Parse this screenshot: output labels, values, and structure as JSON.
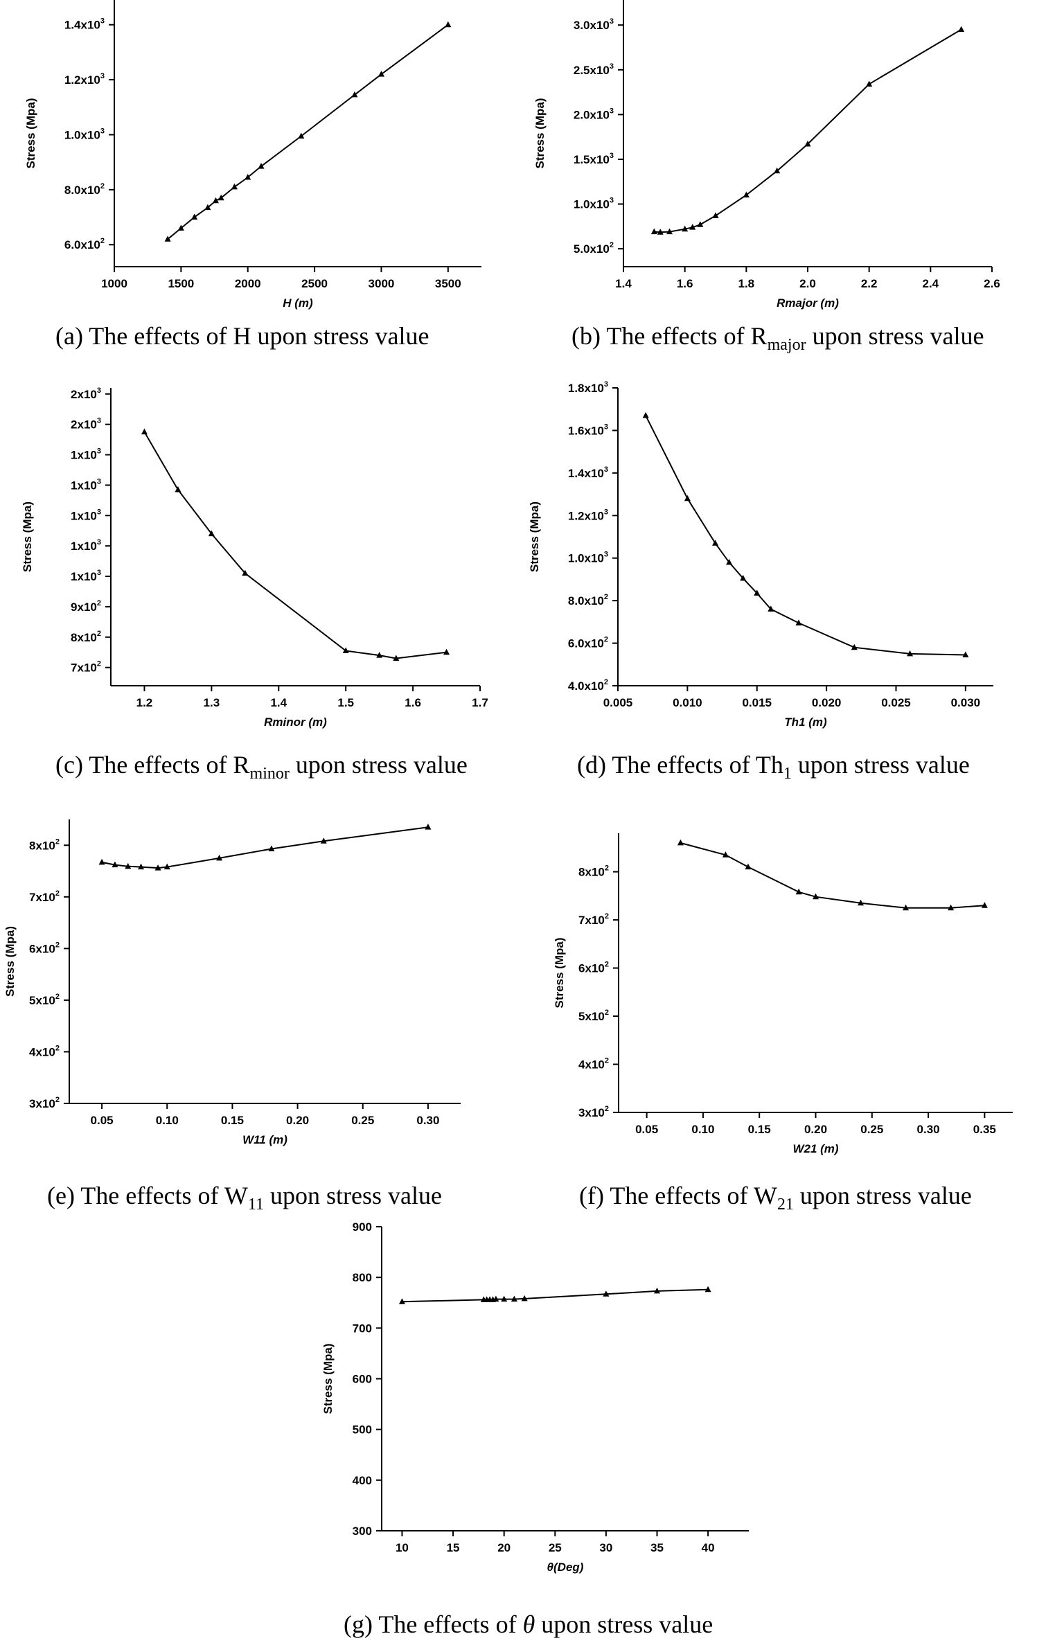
{
  "chart_data": [
    {
      "id": "a",
      "type": "line",
      "caption": {
        "prefix": "(a) The effects of H upon stress value",
        "sub": "",
        "suffix": ""
      },
      "xlabel": "H (m)",
      "ylabel": "Stress (Mpa)",
      "xlim": [
        1000,
        3750
      ],
      "ylim": [
        520,
        1490
      ],
      "xticks": [
        {
          "v": 1000,
          "label": "1000"
        },
        {
          "v": 1500,
          "label": "1500"
        },
        {
          "v": 2000,
          "label": "2000"
        },
        {
          "v": 2500,
          "label": "2500"
        },
        {
          "v": 3000,
          "label": "3000"
        },
        {
          "v": 3500,
          "label": "3500"
        }
      ],
      "yticks": [
        {
          "v": 600,
          "m": "6.0x10",
          "e": "2"
        },
        {
          "v": 800,
          "m": "8.0x10",
          "e": "2"
        },
        {
          "v": 1000,
          "m": "1.0x10",
          "e": "3"
        },
        {
          "v": 1200,
          "m": "1.2x10",
          "e": "3"
        },
        {
          "v": 1400,
          "m": "1.4x10",
          "e": "3"
        }
      ],
      "x": [
        1400,
        1500,
        1600,
        1700,
        1760,
        1800,
        1900,
        2000,
        2100,
        2400,
        2800,
        3000,
        3500
      ],
      "y": [
        620,
        660,
        700,
        735,
        760,
        770,
        810,
        845,
        885,
        995,
        1145,
        1220,
        1400
      ]
    },
    {
      "id": "b",
      "type": "line",
      "caption": {
        "prefix": "(b) The effects of R",
        "sub": "major",
        "suffix": " upon stress value"
      },
      "xlabel": "Rmajor (m)",
      "ylabel": "Stress (Mpa)",
      "xlim": [
        1.4,
        2.6
      ],
      "ylim": [
        300,
        3280
      ],
      "xticks": [
        {
          "v": 1.4,
          "label": "1.4"
        },
        {
          "v": 1.6,
          "label": "1.6"
        },
        {
          "v": 1.8,
          "label": "1.8"
        },
        {
          "v": 2.0,
          "label": "2.0"
        },
        {
          "v": 2.2,
          "label": "2.2"
        },
        {
          "v": 2.4,
          "label": "2.4"
        },
        {
          "v": 2.6,
          "label": "2.6"
        }
      ],
      "yticks": [
        {
          "v": 500,
          "m": "5.0x10",
          "e": "2"
        },
        {
          "v": 1000,
          "m": "1.0x10",
          "e": "3"
        },
        {
          "v": 1500,
          "m": "1.5x10",
          "e": "3"
        },
        {
          "v": 2000,
          "m": "2.0x10",
          "e": "3"
        },
        {
          "v": 2500,
          "m": "2.5x10",
          "e": "3"
        },
        {
          "v": 3000,
          "m": "3.0x10",
          "e": "3"
        }
      ],
      "x": [
        1.5,
        1.52,
        1.55,
        1.6,
        1.625,
        1.65,
        1.7,
        1.8,
        1.9,
        2.0,
        2.2,
        2.5
      ],
      "y": [
        690,
        685,
        690,
        720,
        740,
        770,
        870,
        1100,
        1370,
        1670,
        2340,
        2950
      ]
    },
    {
      "id": "c",
      "type": "line",
      "caption": {
        "prefix": "(c) The effects of R",
        "sub": "minor",
        "suffix": " upon stress value"
      },
      "xlabel": "Rminor (m)",
      "ylabel": "Stress (Mpa)",
      "xlim": [
        1.15,
        1.7
      ],
      "ylim": [
        640,
        1620
      ],
      "xticks": [
        {
          "v": 1.2,
          "label": "1.2"
        },
        {
          "v": 1.3,
          "label": "1.3"
        },
        {
          "v": 1.4,
          "label": "1.4"
        },
        {
          "v": 1.5,
          "label": "1.5"
        },
        {
          "v": 1.6,
          "label": "1.6"
        },
        {
          "v": 1.7,
          "label": "1.7"
        }
      ],
      "yticks": [
        {
          "v": 700,
          "m": "7x10",
          "e": "2"
        },
        {
          "v": 800,
          "m": "8x10",
          "e": "2"
        },
        {
          "v": 900,
          "m": "9x10",
          "e": "2"
        },
        {
          "v": 1000,
          "m": "1x10",
          "e": "3"
        },
        {
          "v": 1100,
          "m": "1x10",
          "e": "3"
        },
        {
          "v": 1200,
          "m": "1x10",
          "e": "3"
        },
        {
          "v": 1300,
          "m": "1x10",
          "e": "3"
        },
        {
          "v": 1400,
          "m": "1x10",
          "e": "3"
        },
        {
          "v": 1500,
          "m": "2x10",
          "e": "3"
        },
        {
          "v": 1600,
          "m": "2x10",
          "e": "3"
        }
      ],
      "x": [
        1.2,
        1.25,
        1.3,
        1.35,
        1.5,
        1.55,
        1.575,
        1.65
      ],
      "y": [
        1475,
        1285,
        1140,
        1010,
        755,
        740,
        730,
        750
      ]
    },
    {
      "id": "d",
      "type": "line",
      "caption": {
        "prefix": "(d) The effects of Th",
        "sub": "1",
        "suffix": " upon stress value"
      },
      "xlabel": "Th1 (m)",
      "ylabel": "Stress (Mpa)",
      "xlim": [
        0.005,
        0.032
      ],
      "ylim": [
        400,
        1800
      ],
      "xticks": [
        {
          "v": 0.005,
          "label": "0.005"
        },
        {
          "v": 0.01,
          "label": "0.010"
        },
        {
          "v": 0.015,
          "label": "0.015"
        },
        {
          "v": 0.02,
          "label": "0.020"
        },
        {
          "v": 0.025,
          "label": "0.025"
        },
        {
          "v": 0.03,
          "label": "0.030"
        }
      ],
      "yticks": [
        {
          "v": 400,
          "m": "4.0x10",
          "e": "2"
        },
        {
          "v": 600,
          "m": "6.0x10",
          "e": "2"
        },
        {
          "v": 800,
          "m": "8.0x10",
          "e": "2"
        },
        {
          "v": 1000,
          "m": "1.0x10",
          "e": "3"
        },
        {
          "v": 1200,
          "m": "1.2x10",
          "e": "3"
        },
        {
          "v": 1400,
          "m": "1.4x10",
          "e": "3"
        },
        {
          "v": 1600,
          "m": "1.6x10",
          "e": "3"
        },
        {
          "v": 1800,
          "m": "1.8x10",
          "e": "3"
        }
      ],
      "x": [
        0.007,
        0.01,
        0.012,
        0.013,
        0.014,
        0.015,
        0.016,
        0.018,
        0.022,
        0.026,
        0.03
      ],
      "y": [
        1670,
        1280,
        1070,
        980,
        905,
        835,
        760,
        695,
        580,
        550,
        545
      ]
    },
    {
      "id": "e",
      "type": "line",
      "caption": {
        "prefix": "(e) The effects of W",
        "sub": "11",
        "suffix": " upon stress value"
      },
      "xlabel": "W11 (m)",
      "ylabel": "Stress (Mpa)",
      "xlim": [
        0.025,
        0.325
      ],
      "ylim": [
        300,
        850
      ],
      "xticks": [
        {
          "v": 0.05,
          "label": "0.05"
        },
        {
          "v": 0.1,
          "label": "0.10"
        },
        {
          "v": 0.15,
          "label": "0.15"
        },
        {
          "v": 0.2,
          "label": "0.20"
        },
        {
          "v": 0.25,
          "label": "0.25"
        },
        {
          "v": 0.3,
          "label": "0.30"
        }
      ],
      "yticks": [
        {
          "v": 300,
          "m": "3x10",
          "e": "2"
        },
        {
          "v": 400,
          "m": "4x10",
          "e": "2"
        },
        {
          "v": 500,
          "m": "5x10",
          "e": "2"
        },
        {
          "v": 600,
          "m": "6x10",
          "e": "2"
        },
        {
          "v": 700,
          "m": "7x10",
          "e": "2"
        },
        {
          "v": 800,
          "m": "8x10",
          "e": "2"
        }
      ],
      "x": [
        0.05,
        0.06,
        0.07,
        0.08,
        0.093,
        0.1,
        0.14,
        0.18,
        0.22,
        0.3
      ],
      "y": [
        767,
        762,
        759,
        758,
        756,
        758,
        775,
        793,
        808,
        835
      ]
    },
    {
      "id": "f",
      "type": "line",
      "caption": {
        "prefix": "(f) The effects of W",
        "sub": "21",
        "suffix": " upon stress value"
      },
      "xlabel": "W21 (m)",
      "ylabel": "Stress (Mpa)",
      "xlim": [
        0.025,
        0.375
      ],
      "ylim": [
        300,
        880
      ],
      "xticks": [
        {
          "v": 0.05,
          "label": "0.05"
        },
        {
          "v": 0.1,
          "label": "0.10"
        },
        {
          "v": 0.15,
          "label": "0.15"
        },
        {
          "v": 0.2,
          "label": "0.20"
        },
        {
          "v": 0.25,
          "label": "0.25"
        },
        {
          "v": 0.3,
          "label": "0.30"
        },
        {
          "v": 0.35,
          "label": "0.35"
        }
      ],
      "yticks": [
        {
          "v": 300,
          "m": "3x10",
          "e": "2"
        },
        {
          "v": 400,
          "m": "4x10",
          "e": "2"
        },
        {
          "v": 500,
          "m": "5x10",
          "e": "2"
        },
        {
          "v": 600,
          "m": "6x10",
          "e": "2"
        },
        {
          "v": 700,
          "m": "7x10",
          "e": "2"
        },
        {
          "v": 800,
          "m": "8x10",
          "e": "2"
        }
      ],
      "x": [
        0.08,
        0.12,
        0.14,
        0.185,
        0.2,
        0.24,
        0.28,
        0.32,
        0.35
      ],
      "y": [
        860,
        835,
        810,
        758,
        748,
        735,
        725,
        725,
        730
      ]
    },
    {
      "id": "g",
      "type": "line",
      "caption": {
        "prefix": "(g) The effects of ",
        "sub": "",
        "suffix": " upon stress value",
        "symbol": "θ"
      },
      "xlabel": "θ(Deg)",
      "ylabel": "Stress (Mpa)",
      "xlim": [
        8,
        44
      ],
      "ylim": [
        300,
        900
      ],
      "xticks": [
        {
          "v": 10,
          "label": "10"
        },
        {
          "v": 15,
          "label": "15"
        },
        {
          "v": 20,
          "label": "20"
        },
        {
          "v": 25,
          "label": "25"
        },
        {
          "v": 30,
          "label": "30"
        },
        {
          "v": 35,
          "label": "35"
        },
        {
          "v": 40,
          "label": "40"
        }
      ],
      "yticks": [
        {
          "v": 300,
          "m": "300",
          "e": ""
        },
        {
          "v": 400,
          "m": "400",
          "e": ""
        },
        {
          "v": 500,
          "m": "500",
          "e": ""
        },
        {
          "v": 600,
          "m": "600",
          "e": ""
        },
        {
          "v": 700,
          "m": "700",
          "e": ""
        },
        {
          "v": 800,
          "m": "800",
          "e": ""
        },
        {
          "v": 900,
          "m": "900",
          "e": ""
        }
      ],
      "x": [
        10,
        18,
        18.3,
        18.6,
        18.9,
        19.2,
        20,
        21,
        22,
        30,
        35,
        40
      ],
      "y": [
        752,
        756,
        756,
        756,
        756,
        757,
        757,
        757,
        758,
        767,
        773,
        776
      ]
    }
  ]
}
